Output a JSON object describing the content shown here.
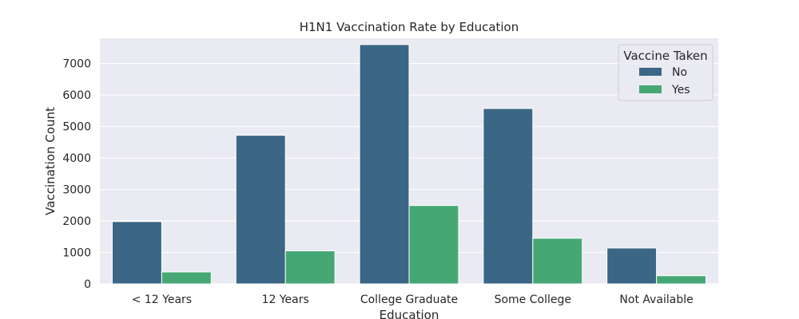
{
  "chart_data": {
    "type": "bar",
    "title": "H1N1 Vaccination Rate by Education",
    "xlabel": "Education",
    "ylabel": "Vaccination Count",
    "categories": [
      "< 12 Years",
      "12 Years",
      "College Graduate",
      "Some College",
      "Not Available"
    ],
    "series": [
      {
        "name": "No",
        "values": [
          1980,
          4720,
          7600,
          5570,
          1140
        ],
        "color": "#3b6685"
      },
      {
        "name": "Yes",
        "values": [
          380,
          1050,
          2490,
          1450,
          260
        ],
        "color": "#45a874"
      }
    ],
    "ylim": [
      0,
      7800
    ],
    "yticks": [
      "0",
      "1000",
      "2000",
      "3000",
      "4000",
      "5000",
      "6000",
      "7000"
    ],
    "grid": true,
    "legend": {
      "title": "Vaccine Taken",
      "placement": "top-right"
    },
    "plot_background": "#eaeaf2"
  }
}
